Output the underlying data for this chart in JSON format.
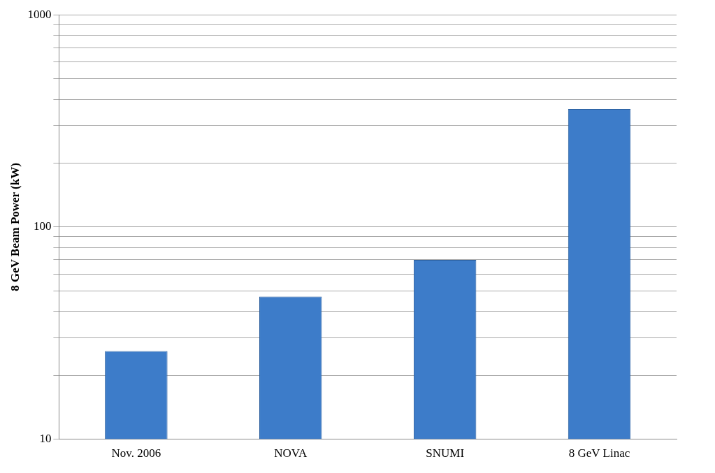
{
  "chart_data": {
    "type": "bar",
    "ylabel": "8 GeV Beam Power (kW)",
    "categories": [
      "Nov. 2006",
      "NOVA",
      "SNUMI",
      "8 GeV Linac"
    ],
    "values": [
      26,
      47,
      70,
      360
    ],
    "color": "#3d7cc9",
    "log": true,
    "ylim": [
      10,
      1000
    ],
    "yticks": [
      10,
      {
        "value": 20,
        "label": null
      },
      {
        "value": 30,
        "label": null
      },
      {
        "value": 40,
        "label": null
      },
      {
        "value": 50,
        "label": null
      },
      {
        "value": 60,
        "label": null
      },
      {
        "value": 70,
        "label": null
      },
      {
        "value": 80,
        "label": null
      },
      {
        "value": 90,
        "label": null
      },
      100,
      {
        "value": 200,
        "label": null
      },
      {
        "value": 300,
        "label": null
      },
      {
        "value": 400,
        "label": null
      },
      {
        "value": 500,
        "label": null
      },
      {
        "value": 600,
        "label": null
      },
      {
        "value": 700,
        "label": null
      },
      {
        "value": 800,
        "label": null
      },
      {
        "value": 900,
        "label": null
      },
      1000
    ],
    "grid": "y",
    "legend": false
  }
}
